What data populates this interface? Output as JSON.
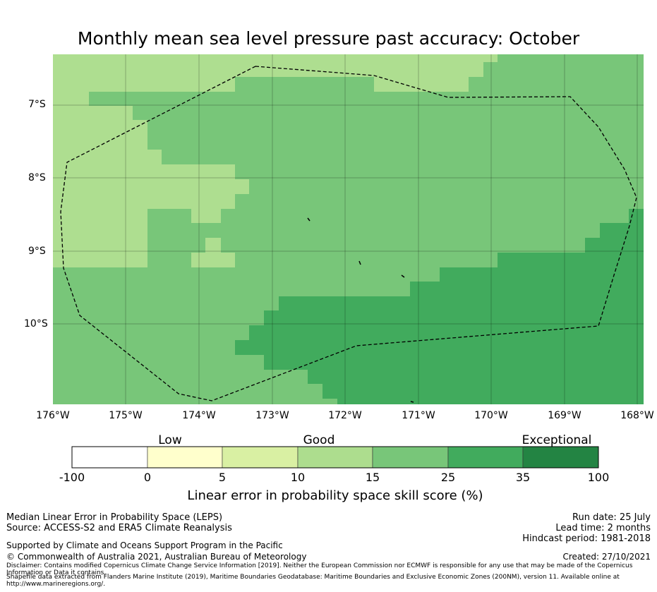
{
  "title": "Monthly mean sea level pressure past accuracy: October",
  "map": {
    "lat_ticks": [
      "7°S",
      "8°S",
      "9°S",
      "10°S"
    ],
    "lon_ticks": [
      "176°W",
      "175°W",
      "174°W",
      "173°W",
      "172°W",
      "171°W",
      "170°W",
      "169°W",
      "168°W"
    ],
    "level_colors": {
      "good": "#aede90",
      "good_high": "#78c679",
      "exceptional_low": "#41ab5d"
    }
  },
  "colorbar": {
    "categories": [
      "Low",
      "Good",
      "Exceptional"
    ],
    "ticks": [
      "-100",
      "0",
      "5",
      "10",
      "15",
      "25",
      "35",
      "100"
    ],
    "colors": [
      "#ffffff",
      "#ffffcc",
      "#d9f0a3",
      "#addd8e",
      "#78c679",
      "#41ab5d",
      "#238443"
    ],
    "label": "Linear error in probability space skill score (%)"
  },
  "footer": {
    "left_line1": "Median Linear Error in Probability Space (LEPS)",
    "left_line2": "Source: ACCESS-S2 and ERA5 Climate Reanalysis",
    "supported": "Supported by Climate and Oceans Support Program in the Pacific",
    "copyright": "© Commonwealth of Australia 2021, Australian Bureau of Meteorology",
    "disclaimer": "Disclaimer: Contains modified Copernicus Climate Change Service Information [2019]. Neither the European Commission nor ECMWF is responsible for any use that may be made of the Copernicus Information or Data it contains.",
    "shapefile": "Shapefile data extracted from Flanders Marine Institute (2019), Maritime Boundaries Geodatabase: Maritime Boundaries and Exclusive Economic Zones (200NM), version 11. Available online at http://www.marineregions.org/.",
    "run_date": "Run date: 25 July",
    "lead_time": "Lead time: 2 months",
    "hindcast": "Hindcast period: 1981-2018",
    "created": "Created: 27/10/2021"
  }
}
